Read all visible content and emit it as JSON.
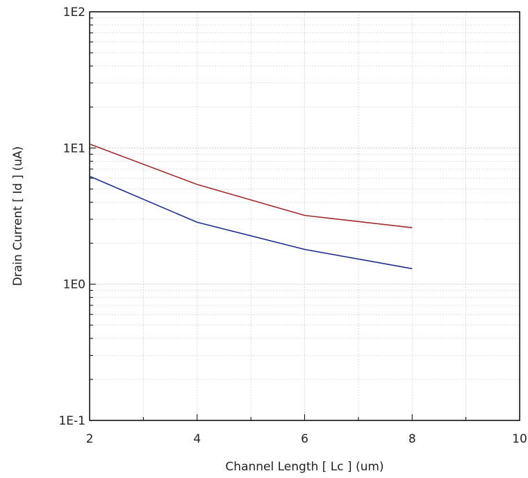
{
  "chart_data": {
    "type": "line",
    "title": "",
    "xlabel": "Channel Length [ Lc ] (um)",
    "ylabel": "Drain Current [ Id ] (uA)",
    "xlim": [
      2,
      10
    ],
    "ylim": [
      0.1,
      100
    ],
    "yscale": "log",
    "grid": true,
    "legend": "none",
    "x_ticks": [
      {
        "value": 2,
        "label": "2"
      },
      {
        "value": 4,
        "label": "4"
      },
      {
        "value": 6,
        "label": "6"
      },
      {
        "value": 8,
        "label": "8"
      },
      {
        "value": 10,
        "label": "10"
      }
    ],
    "y_ticks": [
      {
        "value": 0.1,
        "label": "1E-1"
      },
      {
        "value": 1,
        "label": "1E0"
      },
      {
        "value": 10,
        "label": "1E1"
      },
      {
        "value": 100,
        "label": "1E2"
      }
    ],
    "series": [
      {
        "color": "#a02828",
        "x": [
          2,
          4,
          6,
          8
        ],
        "y": [
          10.7,
          5.4,
          3.2,
          2.6
        ]
      },
      {
        "color": "#1e2a8c",
        "x": [
          2,
          4,
          6,
          8
        ],
        "y": [
          6.2,
          2.85,
          1.8,
          1.3
        ]
      }
    ]
  }
}
